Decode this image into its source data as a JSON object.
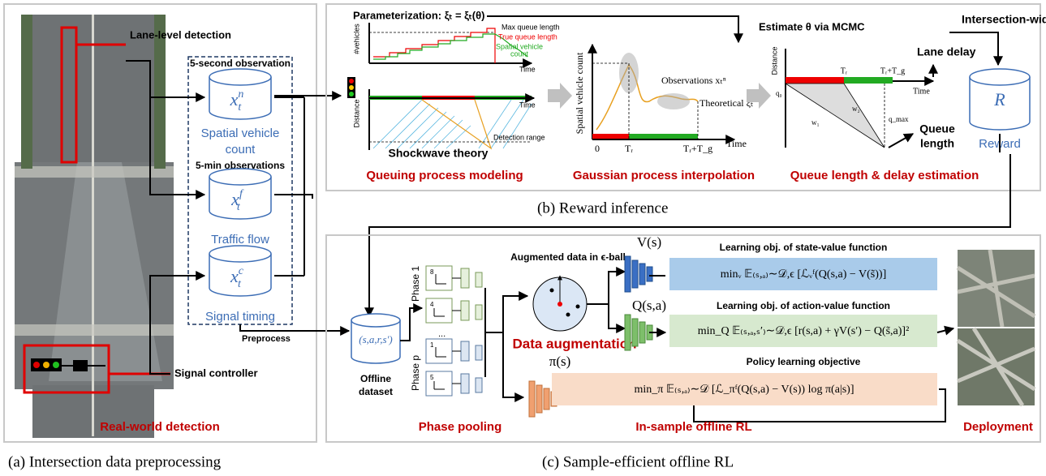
{
  "panel_a": {
    "lane_detection": "Lane-level detection",
    "obs_5s": "5-second observation",
    "obs_5min": "5-min observations",
    "inputs": [
      {
        "symbol": "x",
        "sub": "t",
        "sup": "n",
        "lines": [
          "Spatial vehicle",
          "count"
        ]
      },
      {
        "symbol": "x",
        "sub": "t",
        "sup": "f",
        "lines": [
          "Traffic flow"
        ]
      },
      {
        "symbol": "x",
        "sub": "t",
        "sup": "c",
        "lines": [
          "Signal timing"
        ]
      }
    ],
    "preprocess": "Preprocess",
    "signal_controller": "Signal controller",
    "title": "Real-world detection",
    "caption": "(a) Intersection data preprocessing"
  },
  "panel_b": {
    "parameterization": "Parameterization: ξₜ = ξₜ(θ)",
    "queue_chart": {
      "y_top": "#vehicles",
      "max_queue": "Max queue length",
      "true_queue": "True queue length",
      "spatial_lines": [
        "Spatial vehicle",
        "count"
      ],
      "time_top": "Time",
      "y_bottom": "Distance",
      "time_bottom": "Time",
      "detection_range": "Detection range",
      "shockwave": "Shockwave theory"
    },
    "queue_title": "Queuing process modeling",
    "gp_chart": {
      "y_label": "Spatial vehicle count",
      "observations": "Observations xₜⁿ",
      "theoretical": "Theoretical ξₜ",
      "x0": "0",
      "tr": "Tᵣ",
      "trtg": "Tᵣ+T_g",
      "time": "Time"
    },
    "gp_title": "Gaussian process interpolation",
    "mcmc": "Estimate θ via MCMC",
    "delay_chart": {
      "y_label": "Distance",
      "tr": "Tᵣ",
      "trtg": "Tᵣ+T_g",
      "time": "Time",
      "q0": "q₀",
      "w2": "w₂",
      "w1": "w₁",
      "qmax": "q_max"
    },
    "delay_title": "Queue length & delay estimation",
    "intersection_wide": "Intersection-wide",
    "lane_delay": "Lane delay",
    "queue_length": [
      "Queue",
      "length"
    ],
    "reward_symbol": "R",
    "reward": "Reward",
    "caption": "(b) Reward inference"
  },
  "panel_c": {
    "dataset_symbol": "(s,a,r,s′)",
    "dataset": [
      "Offline",
      "dataset"
    ],
    "phase1": "Phase 1",
    "phasep": "Phase p",
    "phase_numbers": [
      "8",
      "4",
      "1",
      "5"
    ],
    "ellipsis": "...",
    "pooling": "Phase pooling",
    "augment_label": "Augmented data in ϵ-ball",
    "augment_title": "Data augmentation",
    "v": "V(s)",
    "q": "Q(s,a)",
    "pi": "π(s)",
    "obj_v_title": "Learning obj. of state-value function",
    "obj_v": "minᵥ 𝔼₍ₛ,ₐ₎∼𝒟,ϵ [ℒᵥᶠ(Q(s,a) − V(s̃))]",
    "obj_q_title": "Learning obj. of action-value function",
    "obj_q": "min_Q 𝔼₍ₛ,ₐ,ₛ′₎∼𝒟,ϵ [r(s,a) + γV(s′) − Q(s̃,a)]²",
    "obj_pi_title": "Policy learning objective",
    "obj_pi": "min_π 𝔼₍ₛ,ₐ₎∼𝒟 [ℒ_πᶠ(Q(s,a) − V(s)) log π(a|s)]",
    "title": "In-sample offline RL",
    "deployment": "Deployment",
    "caption": "(c) Sample-efficient offline RL"
  }
}
